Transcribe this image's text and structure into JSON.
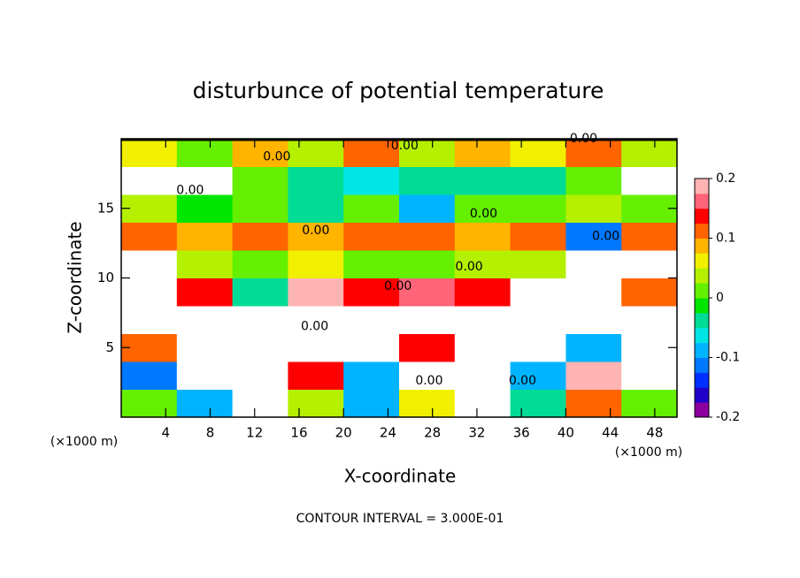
{
  "chart_data": {
    "type": "heatmap",
    "title": "disturbunce of potential temperature",
    "x_label": "X-coordinate",
    "y_label": "Z-coordinate",
    "x_unit": "(×1000 m)",
    "footer": "CONTOUR INTERVAL = 3.000E-01",
    "x": [
      2.5,
      7.5,
      12.5,
      17.5,
      22.5,
      27.5,
      32.5,
      37.5,
      42.5,
      47.5
    ],
    "y": [
      1,
      3,
      5,
      7,
      9,
      11,
      13,
      15,
      17,
      19
    ],
    "z": [
      [
        0.02,
        -0.08,
        0.25,
        0.03,
        -0.1,
        0.05,
        0.3,
        -0.05,
        0.12,
        0.02
      ],
      [
        -0.12,
        0.25,
        -0.3,
        0.15,
        -0.08,
        -0.3,
        0.3,
        -0.1,
        0.2,
        -0.3
      ],
      [
        0.1,
        -0.3,
        0.3,
        -0.25,
        0.3,
        0.15,
        -0.3,
        0.3,
        -0.1,
        0.25
      ],
      [
        -0.3,
        0.3,
        -0.3,
        0.3,
        -0.3,
        0.3,
        0.3,
        -0.3,
        0.3,
        -0.3
      ],
      [
        0.3,
        0.15,
        -0.05,
        0.18,
        0.14,
        0.16,
        0.15,
        -0.3,
        0.3,
        0.12
      ],
      [
        -0.3,
        0.03,
        0.02,
        0.05,
        0.0,
        0.02,
        0.04,
        0.03,
        -0.3,
        0.3
      ],
      [
        0.1,
        0.09,
        0.11,
        0.08,
        0.12,
        0.1,
        0.09,
        0.11,
        -0.12,
        0.1
      ],
      [
        0.03,
        -0.02,
        0.02,
        -0.03,
        0.01,
        -0.08,
        0.02,
        0.0,
        0.03,
        0.02
      ],
      [
        0.25,
        0.3,
        0.02,
        -0.05,
        -0.06,
        -0.05,
        -0.04,
        -0.03,
        0.02,
        0.3
      ],
      [
        0.05,
        0.02,
        0.09,
        0.03,
        0.1,
        0.04,
        0.09,
        0.05,
        0.1,
        0.04
      ]
    ],
    "xlim": [
      0,
      50
    ],
    "ylim": [
      0,
      20
    ],
    "xticks": [
      4,
      8,
      12,
      16,
      20,
      24,
      28,
      32,
      36,
      40,
      44,
      48
    ],
    "yticks": [
      5,
      10,
      15
    ],
    "clim": [
      -0.2,
      0.2
    ],
    "cticks": [
      -0.2,
      -0.1,
      0,
      0.1,
      0.2
    ],
    "colors": [
      "#8c00a0",
      "#2000c8",
      "#0030ff",
      "#0078ff",
      "#00b4ff",
      "#00e6e6",
      "#00dc96",
      "#00e600",
      "#64f000",
      "#b4f000",
      "#f0f000",
      "#ffb400",
      "#ff6400",
      "#ff0000",
      "#ff6478",
      "#ffb4b4"
    ],
    "over_color": "#ffffff",
    "annotations": [
      {
        "text": "0.00",
        "x": 14.0,
        "y": 18.7
      },
      {
        "text": "0.00",
        "x": 41.6,
        "y": 20.0
      },
      {
        "text": "0.00",
        "x": 25.5,
        "y": 19.5
      },
      {
        "text": "0.00",
        "x": 6.2,
        "y": 16.3
      },
      {
        "text": "0.00",
        "x": 32.6,
        "y": 14.6
      },
      {
        "text": "0.00",
        "x": 17.5,
        "y": 13.4
      },
      {
        "text": "0.00",
        "x": 43.6,
        "y": 13.0
      },
      {
        "text": "0.00",
        "x": 31.3,
        "y": 10.8
      },
      {
        "text": "0.00",
        "x": 24.9,
        "y": 9.4
      },
      {
        "text": "0.00",
        "x": 17.4,
        "y": 6.5
      },
      {
        "text": "0.00",
        "x": 27.7,
        "y": 2.6
      },
      {
        "text": "0.00",
        "x": 36.1,
        "y": 2.6
      }
    ]
  }
}
